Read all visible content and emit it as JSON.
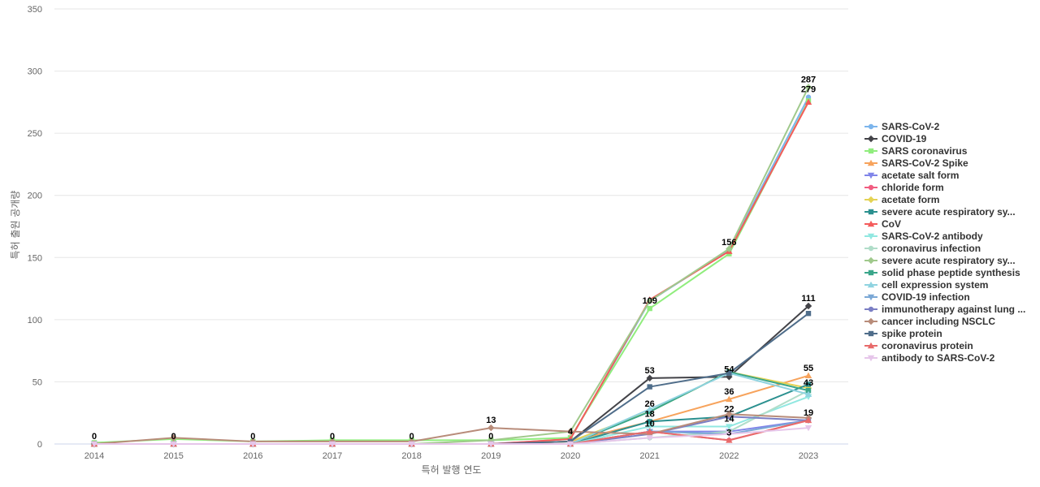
{
  "chart_data": {
    "type": "line",
    "title": "",
    "xlabel": "특허 발행 연도",
    "ylabel": "특허 출원 공개량",
    "ylim": [
      0,
      350
    ],
    "yticks": [
      0,
      50,
      100,
      150,
      200,
      250,
      300,
      350
    ],
    "categories": [
      "2014",
      "2015",
      "2016",
      "2017",
      "2018",
      "2019",
      "2020",
      "2021",
      "2022",
      "2023"
    ],
    "series": [
      {
        "name": "SARS-CoV-2",
        "color": "#7cb5ec",
        "marker": "circle",
        "values": [
          0,
          0,
          0,
          0,
          0,
          0,
          4,
          115,
          156,
          279
        ]
      },
      {
        "name": "COVID-19",
        "color": "#434348",
        "marker": "diamond",
        "values": [
          0,
          0,
          0,
          0,
          0,
          0,
          2,
          53,
          54,
          111
        ]
      },
      {
        "name": "SARS coronavirus",
        "color": "#90ed7d",
        "marker": "square",
        "values": [
          1,
          4,
          2,
          3,
          3,
          3,
          5,
          109,
          153,
          276
        ]
      },
      {
        "name": "SARS-CoV-2 Spike",
        "color": "#f7a35c",
        "marker": "triangle",
        "values": [
          0,
          0,
          0,
          0,
          0,
          0,
          2,
          18,
          36,
          55
        ]
      },
      {
        "name": "acetate salt form",
        "color": "#8085e9",
        "marker": "triangle-down",
        "values": [
          0,
          0,
          0,
          0,
          0,
          0,
          0,
          10,
          10,
          19
        ]
      },
      {
        "name": "chloride form",
        "color": "#f15c80",
        "marker": "circle",
        "values": [
          0,
          0,
          0,
          0,
          0,
          0,
          0,
          10,
          3,
          19
        ]
      },
      {
        "name": "acetate form",
        "color": "#e4d354",
        "marker": "diamond",
        "values": [
          0,
          0,
          0,
          0,
          0,
          0,
          2,
          26,
          58,
          45
        ]
      },
      {
        "name": "severe acute respiratory sy...",
        "color": "#2b908f",
        "marker": "square",
        "values": [
          0,
          0,
          0,
          0,
          0,
          0,
          0,
          18,
          22,
          48
        ]
      },
      {
        "name": "CoV",
        "color": "#f45b5b",
        "marker": "triangle",
        "values": [
          0,
          0,
          0,
          0,
          0,
          0,
          4,
          116,
          155,
          275
        ]
      },
      {
        "name": "SARS-CoV-2 antibody",
        "color": "#91e8e1",
        "marker": "triangle-down",
        "values": [
          0,
          0,
          0,
          0,
          0,
          0,
          0,
          14,
          14,
          38
        ]
      },
      {
        "name": "coronavirus infection",
        "color": "#b0ddc9",
        "marker": "circle",
        "values": [
          0,
          0,
          0,
          0,
          0,
          0,
          0,
          5,
          10,
          43
        ]
      },
      {
        "name": "severe acute respiratory sy...",
        "color": "#a0c98c",
        "marker": "diamond",
        "values": [
          0,
          0,
          0,
          0,
          0,
          3,
          10,
          115,
          157,
          287
        ]
      },
      {
        "name": "solid phase peptide synthesis",
        "color": "#3aa68a",
        "marker": "square",
        "values": [
          0,
          0,
          0,
          0,
          0,
          0,
          0,
          26,
          58,
          43
        ]
      },
      {
        "name": "cell expression system",
        "color": "#8fd3e0",
        "marker": "triangle",
        "values": [
          0,
          0,
          0,
          0,
          0,
          0,
          0,
          28,
          57,
          40
        ]
      },
      {
        "name": "COVID-19 infection",
        "color": "#7ba8d6",
        "marker": "triangle-down",
        "values": [
          0,
          0,
          0,
          0,
          0,
          0,
          0,
          10,
          8,
          19
        ]
      },
      {
        "name": "immunotherapy against lung ...",
        "color": "#7b7fc4",
        "marker": "circle",
        "values": [
          0,
          0,
          0,
          0,
          0,
          0,
          0,
          8,
          22,
          19
        ]
      },
      {
        "name": "cancer including NSCLC",
        "color": "#b88c7a",
        "marker": "diamond",
        "values": [
          0,
          5,
          2,
          2,
          2,
          13,
          10,
          8,
          24,
          21
        ]
      },
      {
        "name": "spike protein",
        "color": "#4f6d8a",
        "marker": "square",
        "values": [
          0,
          0,
          0,
          0,
          0,
          0,
          2,
          46,
          57,
          105
        ]
      },
      {
        "name": "coronavirus protein",
        "color": "#e86a6a",
        "marker": "triangle",
        "values": [
          0,
          0,
          0,
          0,
          0,
          0,
          0,
          10,
          3,
          19
        ]
      },
      {
        "name": "antibody to SARS-CoV-2",
        "color": "#e6c6ea",
        "marker": "triangle-down",
        "values": [
          0,
          0,
          0,
          0,
          0,
          0,
          0,
          5,
          8,
          13
        ]
      }
    ],
    "data_labels": [
      {
        "category": "2014",
        "value": 0,
        "text": "0"
      },
      {
        "category": "2015",
        "value": 0,
        "text": "0"
      },
      {
        "category": "2016",
        "value": 0,
        "text": "0"
      },
      {
        "category": "2017",
        "value": 0,
        "text": "0"
      },
      {
        "category": "2018",
        "value": 0,
        "text": "0"
      },
      {
        "category": "2019",
        "value": 13,
        "text": "13"
      },
      {
        "category": "2019",
        "value": 0,
        "text": "0"
      },
      {
        "category": "2020",
        "value": 4,
        "text": "4"
      },
      {
        "category": "2021",
        "value": 109,
        "text": "109"
      },
      {
        "category": "2021",
        "value": 53,
        "text": "53"
      },
      {
        "category": "2021",
        "value": 26,
        "text": "26"
      },
      {
        "category": "2021",
        "value": 18,
        "text": "18"
      },
      {
        "category": "2021",
        "value": 10,
        "text": "10"
      },
      {
        "category": "2022",
        "value": 156,
        "text": "156"
      },
      {
        "category": "2022",
        "value": 54,
        "text": "54"
      },
      {
        "category": "2022",
        "value": 36,
        "text": "36"
      },
      {
        "category": "2022",
        "value": 22,
        "text": "22"
      },
      {
        "category": "2022",
        "value": 14,
        "text": "14"
      },
      {
        "category": "2022",
        "value": 3,
        "text": "3"
      },
      {
        "category": "2023",
        "value": 287,
        "text": "287"
      },
      {
        "category": "2023",
        "value": 279,
        "text": "279"
      },
      {
        "category": "2023",
        "value": 111,
        "text": "111"
      },
      {
        "category": "2023",
        "value": 55,
        "text": "55"
      },
      {
        "category": "2023",
        "value": 43,
        "text": "43"
      },
      {
        "category": "2023",
        "value": 19,
        "text": "19"
      }
    ],
    "legend_position": "right"
  }
}
